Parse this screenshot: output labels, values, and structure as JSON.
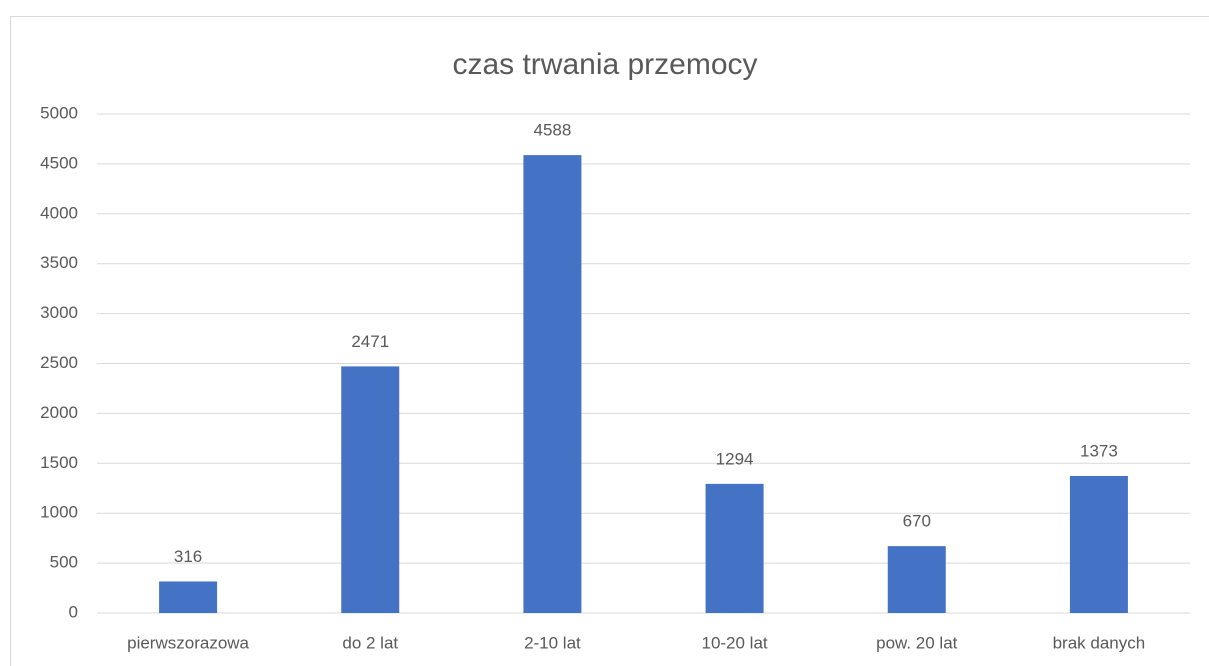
{
  "chart_data": {
    "type": "bar",
    "title": "czas trwania przemocy",
    "categories": [
      "pierwszorazowa",
      "do 2 lat",
      "2-10 lat",
      "10-20 lat",
      "pow. 20 lat",
      "brak danych"
    ],
    "values": [
      316,
      2471,
      4588,
      1294,
      670,
      1373
    ],
    "color": "#4472c4",
    "ylim": [
      0,
      5000
    ],
    "yticks": [
      0,
      500,
      1000,
      1500,
      2000,
      2500,
      3000,
      3500,
      4000,
      4500,
      5000
    ],
    "grid": true
  }
}
